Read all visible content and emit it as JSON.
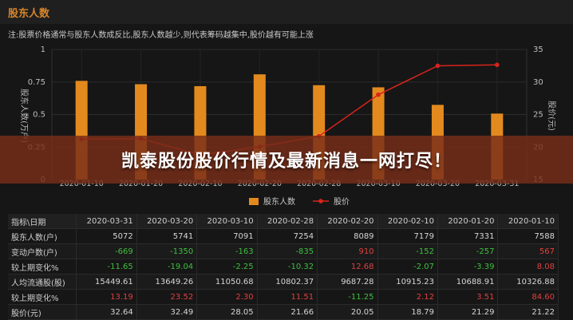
{
  "header": {
    "app_title": "股东人数"
  },
  "note": "注:股票价格通常与股东人数成反比,股东人数越少,则代表筹码越集中,股价越有可能上涨",
  "overlay": {
    "headline": "凯泰股份股价行情及最新消息一网打尽！"
  },
  "chart_data": {
    "type": "bar+line",
    "categories": [
      "2020-01-10",
      "2020-01-20",
      "2020-02-10",
      "2020-02-20",
      "2020-02-28",
      "2020-03-10",
      "2020-03-20",
      "2020-03-31"
    ],
    "ylabel_left": "股东人数(万户)",
    "ylabel_right": "股价(元)",
    "ylim_left": [
      0,
      1
    ],
    "ylim_right": [
      15,
      35
    ],
    "yticks_left": [
      "0",
      "0.25",
      "0.5",
      "0.75",
      "1"
    ],
    "yticks_right": [
      "15",
      "20",
      "25",
      "30",
      "35"
    ],
    "series": [
      {
        "name": "股东人数",
        "kind": "bar",
        "axis": "left",
        "color": "#e38a1e",
        "values": [
          0.7588,
          0.7331,
          0.7179,
          0.8089,
          0.7254,
          0.7091,
          0.5741,
          0.5072
        ]
      },
      {
        "name": "股价",
        "kind": "line",
        "axis": "right",
        "color": "#d9231c",
        "values": [
          21.22,
          21.29,
          18.79,
          20.05,
          21.66,
          28.05,
          32.49,
          32.64
        ]
      }
    ],
    "legend_position": "bottom"
  },
  "table": {
    "headers": [
      "指标\\日期",
      "2020-03-31",
      "2020-03-20",
      "2020-03-10",
      "2020-02-28",
      "2020-02-20",
      "2020-02-10",
      "2020-01-20",
      "2020-01-10"
    ],
    "rows": [
      {
        "label": "股东人数(户)",
        "values": [
          "5072",
          "5741",
          "7091",
          "7254",
          "8089",
          "7179",
          "7331",
          "7588"
        ],
        "colors": [
          "n",
          "n",
          "n",
          "n",
          "n",
          "n",
          "n",
          "n"
        ]
      },
      {
        "label": "变动户数(户)",
        "values": [
          "-669",
          "-1350",
          "-163",
          "-835",
          "910",
          "-152",
          "-257",
          "567"
        ],
        "colors": [
          "g",
          "g",
          "g",
          "g",
          "r",
          "g",
          "g",
          "r"
        ]
      },
      {
        "label": "较上期变化%",
        "values": [
          "-11.65",
          "-19.04",
          "-2.25",
          "-10.32",
          "12.68",
          "-2.07",
          "-3.39",
          "8.08"
        ],
        "colors": [
          "g",
          "g",
          "g",
          "g",
          "r",
          "g",
          "g",
          "r"
        ]
      },
      {
        "label": "人均流通股(股)",
        "values": [
          "15449.61",
          "13649.26",
          "11050.68",
          "10802.37",
          "9687.28",
          "10915.23",
          "10688.91",
          "10326.88"
        ],
        "colors": [
          "n",
          "n",
          "n",
          "n",
          "n",
          "n",
          "n",
          "n"
        ]
      },
      {
        "label": "较上期变化%",
        "values": [
          "13.19",
          "23.52",
          "2.30",
          "11.51",
          "-11.25",
          "2.12",
          "3.51",
          "84.60"
        ],
        "colors": [
          "r",
          "r",
          "r",
          "r",
          "g",
          "r",
          "r",
          "r"
        ]
      },
      {
        "label": "股价(元)",
        "values": [
          "32.64",
          "32.49",
          "28.05",
          "21.66",
          "20.05",
          "18.79",
          "21.29",
          "21.22"
        ],
        "colors": [
          "n",
          "n",
          "n",
          "n",
          "n",
          "n",
          "n",
          "n"
        ]
      }
    ]
  }
}
